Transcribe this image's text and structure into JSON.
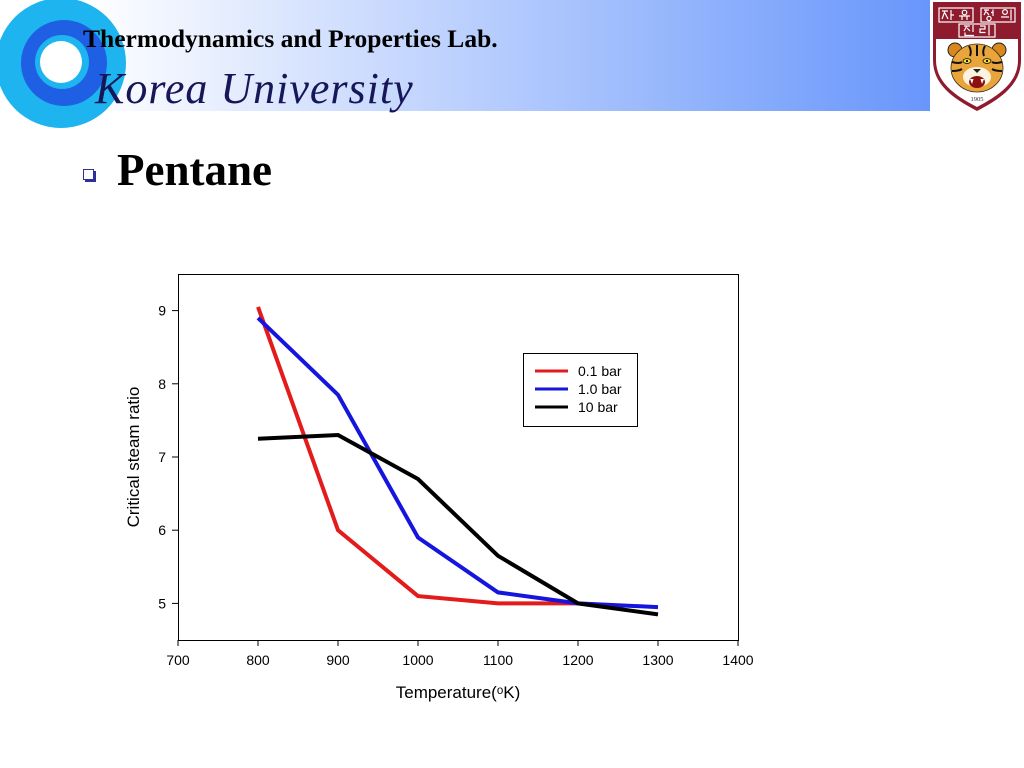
{
  "header": {
    "lab_name": "Thermodynamics and Properties Lab.",
    "university": "Korea University",
    "ring_logo_icon": "concentric-rings-logo"
  },
  "logo": {
    "icon": "korea-university-crest",
    "motto": "자유 정의 진리",
    "year": "1905"
  },
  "slide": {
    "bullet_icon": "hollow-square-bullet",
    "heading": "Pentane"
  },
  "colors": {
    "banner_light": "#ffffff",
    "banner_dark": "#6896fb",
    "ring_cyan": "#1db4ef",
    "ring_blue": "#1f5fe4",
    "bullet": "#2f2f9c",
    "crest_crimson": "#8e1b2e",
    "university_text": "#161659"
  },
  "chart_data": {
    "type": "line",
    "xlabel": "Temperature(ᵒK)",
    "ylabel": "Critical steam ratio",
    "xlim": [
      700,
      1400
    ],
    "ylim": [
      4.5,
      9.5
    ],
    "xticks": [
      700,
      800,
      900,
      1000,
      1100,
      1200,
      1300,
      1400
    ],
    "yticks": [
      5,
      6,
      7,
      8,
      9
    ],
    "grid": false,
    "legend": "top-right",
    "series": [
      {
        "name": "0.1 bar",
        "color": "#e31b1b",
        "x": [
          800,
          900,
          1000,
          1100,
          1200
        ],
        "y": [
          9.05,
          6.0,
          5.1,
          5.0,
          5.0
        ]
      },
      {
        "name": "1.0 bar",
        "color": "#1515dd",
        "x": [
          800,
          900,
          1000,
          1100,
          1200,
          1300
        ],
        "y": [
          8.9,
          7.85,
          5.9,
          5.15,
          5.0,
          4.95
        ]
      },
      {
        "name": "10 bar",
        "color": "#000000",
        "x": [
          800,
          900,
          1000,
          1100,
          1200,
          1300
        ],
        "y": [
          7.25,
          7.3,
          6.7,
          5.65,
          5.0,
          4.85
        ]
      }
    ]
  }
}
